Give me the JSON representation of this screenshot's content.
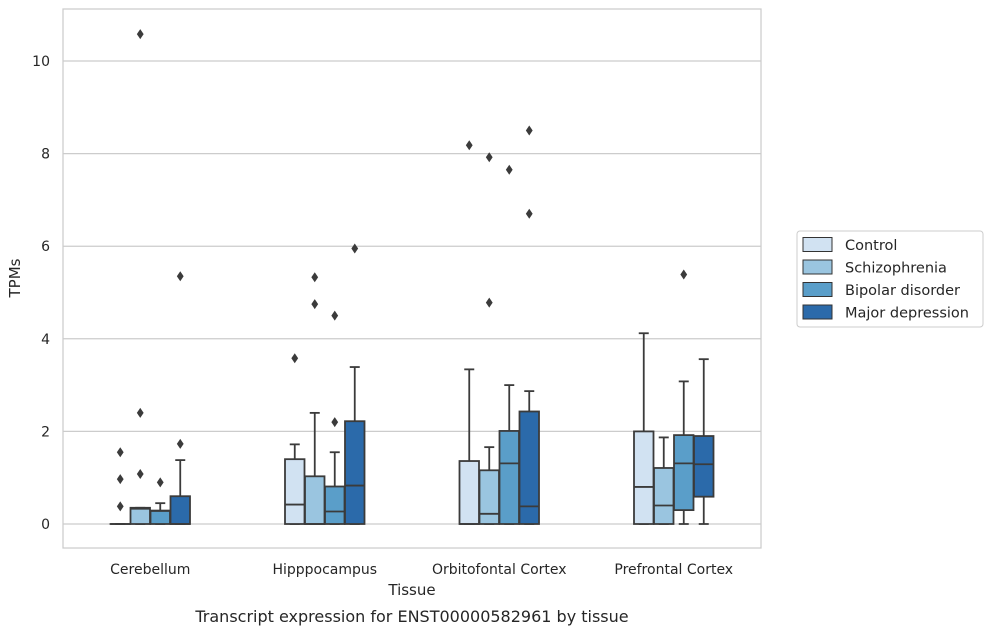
{
  "chart_data": {
    "type": "box",
    "title": "",
    "caption": "Transcript expression for ENST00000582961 by tissue",
    "xlabel": "Tissue",
    "ylabel": "TPMs",
    "ylim": [
      -0.5,
      11.1
    ],
    "yticks": [
      0,
      2,
      4,
      6,
      8,
      10
    ],
    "grid": "horizontal",
    "legend_position": "right",
    "categories": [
      "Cerebellum",
      "Hipppocampus",
      "Orbitofontal Cortex",
      "Prefrontal Cortex"
    ],
    "series": [
      {
        "name": "Control",
        "color": "#d1e2f2",
        "boxes": [
          {
            "q1": 0,
            "median": 0,
            "q3": 0,
            "whisker_low": 0,
            "whisker_high": 0,
            "outliers": [
              1.55,
              0.97,
              0.38
            ]
          },
          {
            "q1": 0,
            "median": 0.42,
            "q3": 1.4,
            "whisker_low": 0,
            "whisker_high": 1.72,
            "outliers": [
              3.58
            ]
          },
          {
            "q1": 0,
            "median": 0,
            "q3": 1.36,
            "whisker_low": 0,
            "whisker_high": 3.34,
            "outliers": [
              8.18
            ]
          },
          {
            "q1": 0,
            "median": 0.8,
            "q3": 2.0,
            "whisker_low": 0,
            "whisker_high": 4.12,
            "outliers": []
          }
        ]
      },
      {
        "name": "Schizophrenia",
        "color": "#9ac5e0",
        "boxes": [
          {
            "q1": 0,
            "median": 0.33,
            "q3": 0.35,
            "whisker_low": 0,
            "whisker_high": 0.35,
            "outliers": [
              10.58,
              2.4,
              1.08
            ]
          },
          {
            "q1": 0,
            "median": 0,
            "q3": 1.03,
            "whisker_low": 0,
            "whisker_high": 2.4,
            "outliers": [
              5.33,
              4.75
            ]
          },
          {
            "q1": 0,
            "median": 0.22,
            "q3": 1.16,
            "whisker_low": 0,
            "whisker_high": 1.66,
            "outliers": [
              7.92,
              4.78
            ]
          },
          {
            "q1": 0,
            "median": 0.4,
            "q3": 1.21,
            "whisker_low": 0,
            "whisker_high": 1.87,
            "outliers": []
          }
        ]
      },
      {
        "name": "Bipolar disorder",
        "color": "#5a9ec9",
        "boxes": [
          {
            "q1": 0,
            "median": 0.28,
            "q3": 0.29,
            "whisker_low": 0,
            "whisker_high": 0.45,
            "outliers": [
              0.9
            ]
          },
          {
            "q1": 0,
            "median": 0.27,
            "q3": 0.81,
            "whisker_low": 0,
            "whisker_high": 1.55,
            "outliers": [
              4.5,
              2.2
            ]
          },
          {
            "q1": 0,
            "median": 1.31,
            "q3": 2.01,
            "whisker_low": 0,
            "whisker_high": 3.0,
            "outliers": [
              7.65
            ]
          },
          {
            "q1": 0.3,
            "median": 1.31,
            "q3": 1.92,
            "whisker_low": 0,
            "whisker_high": 3.08,
            "outliers": [
              5.39
            ]
          }
        ]
      },
      {
        "name": "Major depression",
        "color": "#2b6aaa",
        "boxes": [
          {
            "q1": 0,
            "median": 0,
            "q3": 0.6,
            "whisker_low": 0,
            "whisker_high": 1.38,
            "outliers": [
              5.35,
              1.73
            ]
          },
          {
            "q1": 0,
            "median": 0.83,
            "q3": 2.22,
            "whisker_low": 0,
            "whisker_high": 3.39,
            "outliers": [
              5.95
            ]
          },
          {
            "q1": 0,
            "median": 0.38,
            "q3": 2.43,
            "whisker_low": 0,
            "whisker_high": 2.87,
            "outliers": [
              8.5,
              6.7
            ]
          },
          {
            "q1": 0.59,
            "median": 1.29,
            "q3": 1.9,
            "whisker_low": 0,
            "whisker_high": 3.56,
            "outliers": []
          }
        ]
      }
    ]
  }
}
